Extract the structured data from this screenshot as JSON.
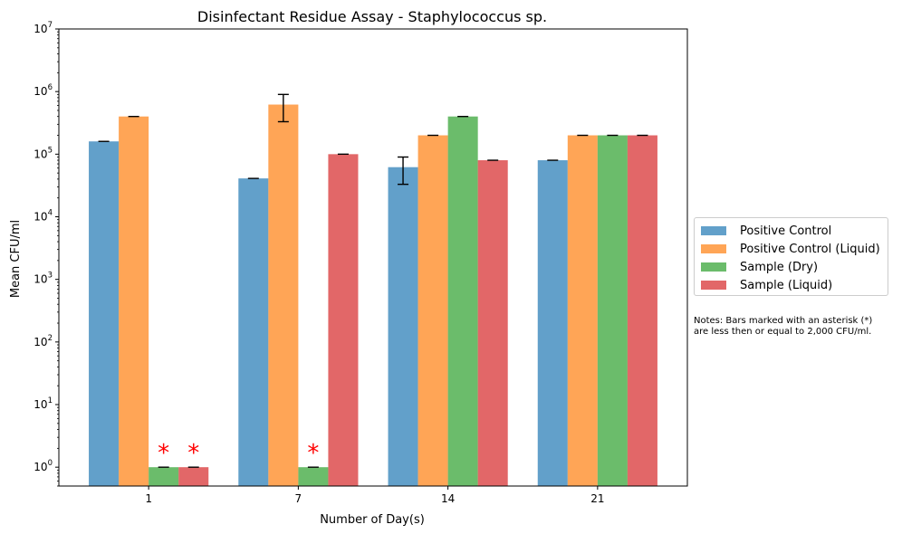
{
  "chart_data": {
    "type": "bar",
    "title": "Disinfectant Residue Assay - Staphylococcus sp.",
    "xlabel": "Number of Day(s)",
    "ylabel": "Mean CFU/ml",
    "categories": [
      "1",
      "7",
      "14",
      "21"
    ],
    "yscale": "log",
    "ylim": [
      0.5,
      10000000
    ],
    "yticks": [
      {
        "value": 1,
        "exp": "0"
      },
      {
        "value": 10,
        "exp": "1"
      },
      {
        "value": 100,
        "exp": "2"
      },
      {
        "value": 1000,
        "exp": "3"
      },
      {
        "value": 10000,
        "exp": "4"
      },
      {
        "value": 100000,
        "exp": "5"
      },
      {
        "value": 1000000,
        "exp": "6"
      },
      {
        "value": 10000000,
        "exp": "7"
      }
    ],
    "grid": false,
    "legend_position": "center-right, outside",
    "series": [
      {
        "name": "Positive Control",
        "color": "#1f77b4",
        "values": [
          160000,
          41000,
          62000,
          80000
        ],
        "error_low": [
          160000,
          41000,
          33000,
          80000
        ],
        "error_high": [
          160000,
          41000,
          90000,
          80000
        ]
      },
      {
        "name": "Positive Control (Liquid)",
        "color": "#ff7f0e",
        "values": [
          400000,
          620000,
          200000,
          200000
        ],
        "error_low": [
          400000,
          330000,
          200000,
          200000
        ],
        "error_high": [
          400000,
          900000,
          200000,
          200000
        ]
      },
      {
        "name": "Sample (Dry)",
        "color": "#2ca02c",
        "values": [
          1,
          1,
          400000,
          200000
        ],
        "error_low": [
          1,
          1,
          400000,
          200000
        ],
        "error_high": [
          1,
          1,
          400000,
          200000
        ],
        "asterisk": [
          true,
          true,
          false,
          false
        ]
      },
      {
        "name": "Sample (Liquid)",
        "color": "#d62728",
        "values": [
          1,
          100000,
          80000,
          200000
        ],
        "error_low": [
          1,
          100000,
          80000,
          200000
        ],
        "error_high": [
          1,
          100000,
          80000,
          200000
        ],
        "asterisk": [
          true,
          false,
          false,
          false
        ]
      }
    ],
    "asterisk_symbol": "*",
    "asterisk_color": "#ff0000",
    "bar_opacity": 0.7,
    "note": {
      "line1": "Notes: Bars marked with an asterisk (*)",
      "line2": "are less then or equal to 2,000 CFU/ml."
    }
  }
}
